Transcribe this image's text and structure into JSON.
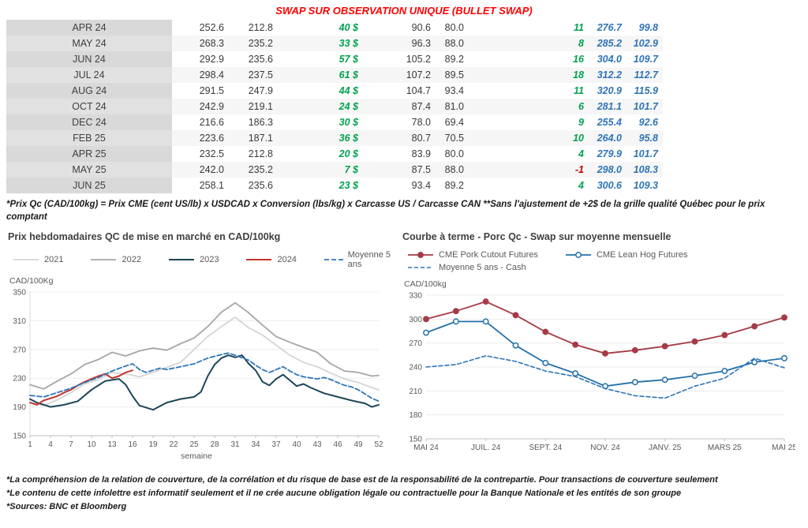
{
  "title": "SWAP SUR OBSERVATION UNIQUE (BULLET SWAP)",
  "palette": {
    "title_red": "#FF0000",
    "green": "#00A14E",
    "negative_red": "#C00000",
    "blue": "#2E74B5",
    "axis_text": "#595959",
    "grid": "#ECECEC"
  },
  "table": {
    "rows": [
      {
        "month": "APR 24",
        "values": [
          "252.6",
          "212.8",
          "40 $",
          "90.6",
          "80.0",
          "11",
          "276.7",
          "99.8"
        ]
      },
      {
        "month": "MAY 24",
        "values": [
          "268.3",
          "235.2",
          "33 $",
          "96.3",
          "88.0",
          "8",
          "285.2",
          "102.9"
        ]
      },
      {
        "month": "JUN 24",
        "values": [
          "292.9",
          "235.6",
          "57 $",
          "105.2",
          "89.2",
          "16",
          "304.0",
          "109.7"
        ]
      },
      {
        "month": "JUL 24",
        "values": [
          "298.4",
          "237.5",
          "61 $",
          "107.2",
          "89.5",
          "18",
          "312.2",
          "112.7"
        ]
      },
      {
        "month": "AUG 24",
        "values": [
          "291.5",
          "247.9",
          "44 $",
          "104.7",
          "93.4",
          "11",
          "320.9",
          "115.9"
        ]
      },
      {
        "month": "OCT 24",
        "values": [
          "242.9",
          "219.1",
          "24 $",
          "87.4",
          "81.0",
          "6",
          "281.1",
          "101.7"
        ]
      },
      {
        "month": "DEC 24",
        "values": [
          "216.6",
          "186.3",
          "30 $",
          "78.0",
          "69.4",
          "9",
          "255.4",
          "92.6"
        ]
      },
      {
        "month": "FEB 25",
        "values": [
          "223.6",
          "187.1",
          "36 $",
          "80.7",
          "70.5",
          "10",
          "264.0",
          "95.8"
        ]
      },
      {
        "month": "APR 25",
        "values": [
          "232.5",
          "212.8",
          "20 $",
          "83.9",
          "80.0",
          "4",
          "279.9",
          "101.7"
        ]
      },
      {
        "month": "MAY 25",
        "values": [
          "242.0",
          "235.2",
          "7 $",
          "87.5",
          "88.0",
          "-1",
          "298.0",
          "108.3"
        ]
      },
      {
        "month": "JUN 25",
        "values": [
          "258.1",
          "235.6",
          "23 $",
          "93.4",
          "89.2",
          "4",
          "300.6",
          "109.3"
        ]
      }
    ],
    "footnote": "*Prix Qc (CAD/100kg) = Prix CME (cent US/lb) x USDCAD x Conversion (lbs/kg) x Carcasse US / Carcasse CAN **Sans l'ajustement de +2$ de la grille qualité Québec pour le prix comptant"
  },
  "chart_data": [
    {
      "type": "line",
      "title": "Prix hebdomadaires QC de mise en marché en CAD/100kg",
      "ylabel": "CAD/100Kg",
      "xlabel": "semaine",
      "xlim": [
        1,
        52
      ],
      "ylim": [
        150,
        350
      ],
      "yticks": [
        150,
        190,
        230,
        270,
        310,
        350
      ],
      "xticks": [
        1,
        4,
        7,
        10,
        13,
        16,
        19,
        22,
        25,
        28,
        31,
        34,
        37,
        40,
        43,
        46,
        49,
        52
      ],
      "grid": true,
      "yaxis_line": true,
      "legend_position": "top",
      "series": [
        {
          "name": "2021",
          "color": "#d5d5d5",
          "width": 1.8,
          "points": [
            [
              1,
              196
            ],
            [
              3,
              192
            ],
            [
              5,
              200
            ],
            [
              7,
              210
            ],
            [
              9,
              222
            ],
            [
              11,
              228
            ],
            [
              13,
              238
            ],
            [
              15,
              236
            ],
            [
              17,
              232
            ],
            [
              19,
              238
            ],
            [
              21,
              245
            ],
            [
              23,
              252
            ],
            [
              25,
              270
            ],
            [
              27,
              288
            ],
            [
              29,
              302
            ],
            [
              31,
              315
            ],
            [
              33,
              300
            ],
            [
              35,
              290
            ],
            [
              37,
              276
            ],
            [
              39,
              262
            ],
            [
              41,
              252
            ],
            [
              43,
              246
            ],
            [
              45,
              237
            ],
            [
              47,
              229
            ],
            [
              49,
              224
            ],
            [
              51,
              217
            ],
            [
              52,
              214
            ]
          ]
        },
        {
          "name": "2022",
          "color": "#a6a6a6",
          "width": 1.8,
          "points": [
            [
              1,
              221
            ],
            [
              3,
              215
            ],
            [
              5,
              226
            ],
            [
              7,
              236
            ],
            [
              9,
              249
            ],
            [
              11,
              256
            ],
            [
              13,
              266
            ],
            [
              15,
              261
            ],
            [
              17,
              268
            ],
            [
              19,
              272
            ],
            [
              21,
              269
            ],
            [
              23,
              278
            ],
            [
              25,
              286
            ],
            [
              27,
              302
            ],
            [
              29,
              322
            ],
            [
              31,
              335
            ],
            [
              33,
              321
            ],
            [
              35,
              304
            ],
            [
              37,
              288
            ],
            [
              39,
              280
            ],
            [
              41,
              273
            ],
            [
              43,
              266
            ],
            [
              45,
              250
            ],
            [
              47,
              240
            ],
            [
              49,
              238
            ],
            [
              51,
              233
            ],
            [
              52,
              234
            ]
          ]
        },
        {
          "name": "2023",
          "color": "#1c4557",
          "width": 2,
          "points": [
            [
              1,
              201
            ],
            [
              2,
              196
            ],
            [
              4,
              190
            ],
            [
              6,
              193
            ],
            [
              8,
              198
            ],
            [
              10,
              214
            ],
            [
              12,
              226
            ],
            [
              14,
              229
            ],
            [
              15,
              221
            ],
            [
              16,
              205
            ],
            [
              17,
              192
            ],
            [
              19,
              186
            ],
            [
              21,
              196
            ],
            [
              23,
              201
            ],
            [
              25,
              204
            ],
            [
              26,
              211
            ],
            [
              27,
              233
            ],
            [
              28,
              249
            ],
            [
              29,
              258
            ],
            [
              30,
              262
            ],
            [
              31,
              259
            ],
            [
              32,
              262
            ],
            [
              33,
              250
            ],
            [
              34,
              241
            ],
            [
              35,
              225
            ],
            [
              36,
              220
            ],
            [
              37,
              229
            ],
            [
              38,
              235
            ],
            [
              39,
              227
            ],
            [
              40,
              219
            ],
            [
              41,
              222
            ],
            [
              42,
              217
            ],
            [
              44,
              209
            ],
            [
              46,
              204
            ],
            [
              48,
              199
            ],
            [
              50,
              195
            ],
            [
              51,
              190
            ],
            [
              52,
              193
            ]
          ]
        },
        {
          "name": "2024",
          "color": "#c4332d",
          "width": 2,
          "points": [
            [
              1,
              196
            ],
            [
              2,
              193
            ],
            [
              3,
              199
            ],
            [
              4,
              202
            ],
            [
              5,
              205
            ],
            [
              6,
              210
            ],
            [
              7,
              214
            ],
            [
              8,
              220
            ],
            [
              9,
              225
            ],
            [
              10,
              229
            ],
            [
              11,
              233
            ],
            [
              12,
              236
            ],
            [
              13,
              230
            ],
            [
              14,
              233
            ],
            [
              15,
              238
            ],
            [
              16,
              241
            ]
          ]
        },
        {
          "name": "Moyenne 5 ans",
          "color": "#2e75b6",
          "width": 1.8,
          "dash": "6 3",
          "points": [
            [
              1,
              206
            ],
            [
              3,
              204
            ],
            [
              5,
              210
            ],
            [
              7,
              216
            ],
            [
              9,
              224
            ],
            [
              11,
              231
            ],
            [
              13,
              240
            ],
            [
              15,
              247
            ],
            [
              16,
              250
            ],
            [
              17,
              242
            ],
            [
              18,
              238
            ],
            [
              19,
              241
            ],
            [
              20,
              244
            ],
            [
              21,
              242
            ],
            [
              23,
              246
            ],
            [
              25,
              250
            ],
            [
              27,
              258
            ],
            [
              29,
              263
            ],
            [
              30,
              265
            ],
            [
              31,
              262
            ],
            [
              33,
              255
            ],
            [
              34,
              248
            ],
            [
              35,
              242
            ],
            [
              36,
              238
            ],
            [
              37,
              242
            ],
            [
              38,
              246
            ],
            [
              39,
              240
            ],
            [
              40,
              235
            ],
            [
              41,
              232
            ],
            [
              43,
              229
            ],
            [
              44,
              231
            ],
            [
              45,
              228
            ],
            [
              46,
              224
            ],
            [
              47,
              220
            ],
            [
              48,
              218
            ],
            [
              49,
              214
            ],
            [
              50,
              208
            ],
            [
              51,
              202
            ],
            [
              52,
              198
            ]
          ]
        }
      ]
    },
    {
      "type": "line",
      "title": "Courbe à terme - Porc Qc - Swap sur moyenne mensuelle",
      "ylabel": "CAD/100kg",
      "xlabel": "",
      "n": 13,
      "ylim": [
        150,
        330
      ],
      "yticks": [
        150,
        180,
        210,
        240,
        270,
        300,
        330
      ],
      "xticks_at": [
        0,
        2,
        4,
        6,
        8,
        10,
        12
      ],
      "xticks_labels": [
        "MAI 24",
        "JUIL. 24",
        "SEPT. 24",
        "NOV. 24",
        "JANV. 25",
        "MARS 25",
        "MAI 25"
      ],
      "grid": true,
      "legend_position": "top",
      "legend_rows": [
        [
          0,
          1
        ],
        [
          2
        ]
      ],
      "series": [
        {
          "name": "CME Pork Cutout Futures",
          "color": "#a63a46",
          "width": 1.8,
          "marker": "filled",
          "values": [
            300,
            310,
            322,
            305,
            284,
            268,
            257,
            261,
            266,
            272,
            280,
            291,
            302
          ]
        },
        {
          "name": "CME Lean Hog Futures",
          "color": "#2471a8",
          "width": 1.8,
          "marker": "open",
          "values": [
            283,
            297,
            297,
            267,
            245,
            232,
            216,
            221,
            224,
            229,
            235,
            246,
            251
          ]
        },
        {
          "name": "Moyenne 5 ans - Cash",
          "color": "#2e75b6",
          "width": 1.6,
          "dash": "5 3",
          "values": [
            240,
            243,
            254,
            247,
            235,
            228,
            213,
            204,
            201,
            216,
            226,
            251,
            239
          ]
        }
      ]
    }
  ],
  "footnotes": [
    "*La compréhension de la relation de couverture, de la corrélation et du risque de base est de la responsabilité de la contrepartie. Pour transactions de couverture seulement",
    "*Le contenu de cette infolettre est informatif seulement et il ne crée aucune obligation légale ou contractuelle pour la Banque Nationale et les entités de son groupe",
    "*Sources: BNC et Bloomberg"
  ]
}
